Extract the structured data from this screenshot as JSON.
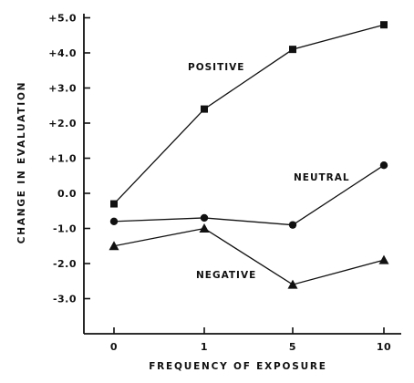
{
  "chart_data": {
    "type": "line",
    "xlabel": "FREQUENCY OF EXPOSURE",
    "ylabel": "CHANGE IN EVALUATION",
    "categories": [
      "0",
      "1",
      "5",
      "10"
    ],
    "y_ticks": [
      "+5.0",
      "+4.0",
      "+3.0",
      "+2.0",
      "+1.0",
      "0.0",
      "-1.0",
      "-2.0",
      "-3.0"
    ],
    "y_tick_values": [
      5,
      4,
      3,
      2,
      1,
      0,
      -1,
      -2,
      -3
    ],
    "ylim": [
      -4,
      5
    ],
    "grid": false,
    "legend": "none",
    "series": [
      {
        "name": "POSITIVE",
        "marker": "square",
        "values": [
          -0.3,
          2.4,
          4.1,
          4.8
        ]
      },
      {
        "name": "NEUTRAL",
        "marker": "circle",
        "values": [
          -0.8,
          -0.7,
          -0.9,
          0.8
        ]
      },
      {
        "name": "NEGATIVE",
        "marker": "triangle",
        "values": [
          -1.5,
          -1.0,
          -2.6,
          -1.9
        ]
      }
    ]
  }
}
